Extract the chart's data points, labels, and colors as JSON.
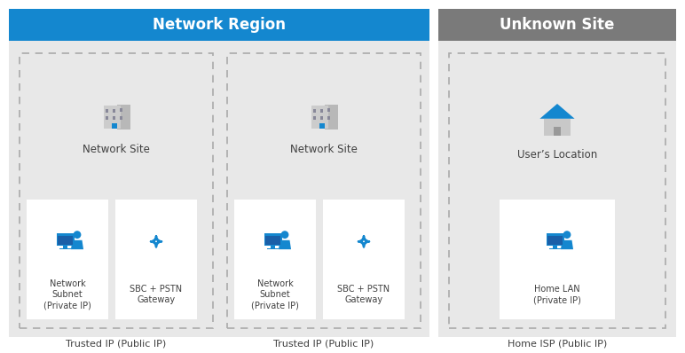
{
  "bg_color": "#f2f2f2",
  "white": "#ffffff",
  "blue_header": "#1487cf",
  "gray_header": "#7a7a7a",
  "light_gray_box": "#e8e8e8",
  "dashed_box_color": "#aaaaaa",
  "blue_icon": "#1487cf",
  "gray_icon": "#aaaaaa",
  "text_dark": "#404040",
  "text_white": "#ffffff",
  "network_region_title": "Network Region",
  "unknown_site_title": "Unknown Site",
  "site1_title": "Network Site",
  "site2_title": "Network Site",
  "unknown_sub_title": "User’s Location",
  "site1_label1": "Network\nSubnet\n(Private IP)",
  "site1_label2": "SBC + PSTN\nGateway",
  "site2_label1": "Network\nSubnet\n(Private IP)",
  "site2_label2": "SBC + PSTN\nGateway",
  "unknown_label1": "Home LAN\n(Private IP)",
  "footer1": "Trusted IP (Public IP)",
  "footer2": "Trusted IP (Public IP)",
  "footer3": "Home ISP (Public IP)"
}
